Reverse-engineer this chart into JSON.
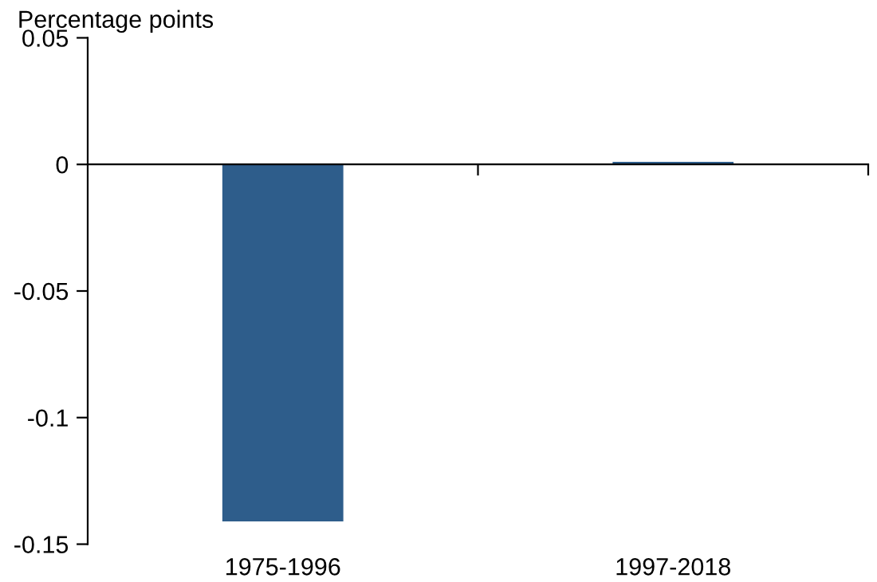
{
  "chart_data": {
    "type": "bar",
    "ylabel": "Percentage points",
    "categories": [
      "1975-1996",
      "1997-2018"
    ],
    "values": [
      -0.141,
      0.001
    ],
    "color": "#2e5d8b",
    "ylim": [
      -0.15,
      0.05
    ],
    "yticks": [
      0.05,
      0,
      -0.05,
      -0.1,
      -0.15
    ]
  }
}
